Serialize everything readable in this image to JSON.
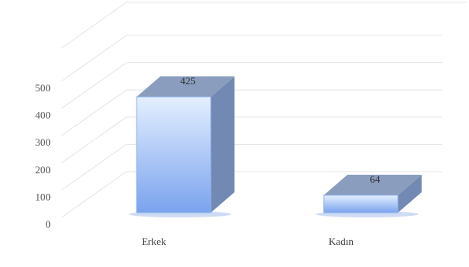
{
  "chart_data": {
    "type": "bar",
    "categories": [
      "Erkek",
      "Kadın"
    ],
    "series": [
      {
        "values": [
          425,
          64
        ]
      }
    ],
    "data_labels": [
      "425",
      "64"
    ],
    "y_ticks": [
      "0",
      "100",
      "200",
      "300",
      "400",
      "500"
    ],
    "ylim": [
      0,
      500
    ],
    "title": "",
    "xlabel": "",
    "ylabel": "",
    "grid": true,
    "legend": "none",
    "style": "3d-column",
    "colors": {
      "bar_front_top": "#e4efff",
      "bar_front_bottom": "#7aa3ee",
      "bar_side": "#7189b3",
      "bar_top": "#8a9dbe",
      "bar_shadow": "#9eb8ea",
      "gridline": "#e4e4e4",
      "tick_text": "#555555"
    }
  }
}
